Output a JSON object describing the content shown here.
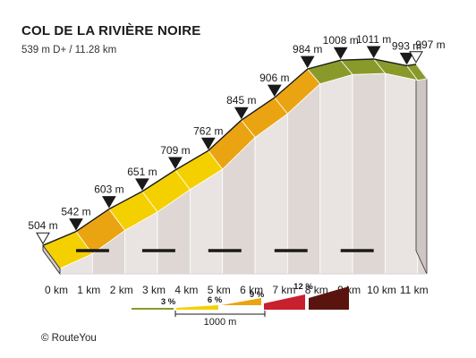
{
  "chart_data": {
    "type": "area",
    "title": "COL DE LA RIVIÈRE NOIRE",
    "subtitle": "539 m D+ / 11.28 km",
    "x_ticks": [
      "0 km",
      "1 km",
      "2 km",
      "3 km",
      "4 km",
      "5 km",
      "6 km",
      "7 km",
      "8 km",
      "9 km",
      "10 km",
      "11 km"
    ],
    "xlim": [
      0,
      11.28
    ],
    "points": [
      {
        "km": 0,
        "elev": 504,
        "label": "504 m",
        "marker": "start"
      },
      {
        "km": 1,
        "elev": 542,
        "label": "542 m"
      },
      {
        "km": 2,
        "elev": 603,
        "label": "603 m"
      },
      {
        "km": 3,
        "elev": 651,
        "label": "651 m"
      },
      {
        "km": 4,
        "elev": 709,
        "label": "709 m"
      },
      {
        "km": 5,
        "elev": 762,
        "label": "762 m"
      },
      {
        "km": 6,
        "elev": 845,
        "label": "845 m"
      },
      {
        "km": 7,
        "elev": 906,
        "label": "906 m"
      },
      {
        "km": 8,
        "elev": 984,
        "label": "984 m"
      },
      {
        "km": 9,
        "elev": 1008,
        "label": "1008 m"
      },
      {
        "km": 10,
        "elev": 1011,
        "label": "1011 m"
      },
      {
        "km": 11,
        "elev": 993,
        "label": "993 m"
      },
      {
        "km": 11.28,
        "elev": 997,
        "label": "997 m",
        "marker": "end"
      }
    ],
    "gradient_colors": {
      "0-3": "#8a9a2a",
      "3-6": "#f5d000",
      "6-9": "#eba411",
      "9-12": "#c8202e",
      "12+": "#5a1410"
    },
    "legend": {
      "percent_labels": [
        "3 %",
        "6 %",
        "9 %",
        "12 %"
      ],
      "scale_label": "1000 m",
      "swatches": [
        "#8a9a2a",
        "#f5d000",
        "#eba411",
        "#c8202e",
        "#5a1410"
      ]
    }
  },
  "copyright": "©  RouteYou"
}
